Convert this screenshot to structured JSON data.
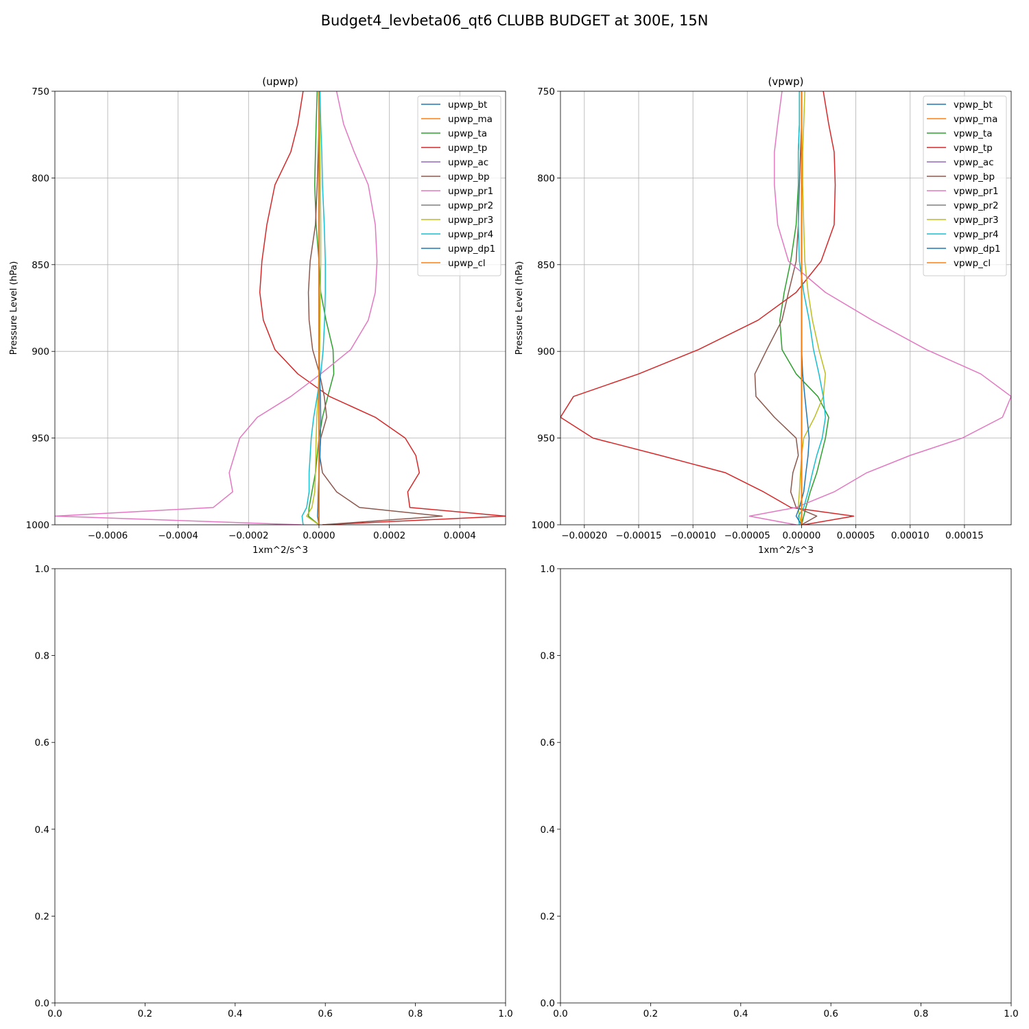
{
  "figure": {
    "suptitle": "Budget4_levbeta06_qt6 CLUBB BUDGET at 300E, 15N"
  },
  "chart_data": [
    {
      "type": "line",
      "title": "(upwp)",
      "xlabel": "1xm^2/s^3",
      "ylabel": "Pressure Level (hPa)",
      "xlim": [
        -0.00075,
        0.00053
      ],
      "ylim": [
        1000,
        750
      ],
      "y_inverted": true,
      "grid": true,
      "legend": "upper right",
      "xticks": [
        -0.0006,
        -0.0004,
        -0.0002,
        0.0,
        0.0002,
        0.0004
      ],
      "xtick_labels": [
        "−0.0006",
        "−0.0004",
        "−0.0002",
        "0.0000",
        "0.0002",
        "0.0004"
      ],
      "yticks": [
        750,
        800,
        850,
        900,
        950,
        1000
      ],
      "ytick_labels": [
        "750",
        "800",
        "850",
        "900",
        "950",
        "1000"
      ],
      "levels": [
        750,
        769,
        785,
        804,
        827,
        848,
        866,
        882,
        899,
        913,
        926,
        938,
        950,
        960,
        970,
        981,
        990,
        995,
        1000
      ],
      "series": [
        {
          "name": "upwp_bt",
          "color": "#1f77b4",
          "values": [
            0,
            0,
            0,
            0,
            0,
            0,
            0,
            0,
            0,
            0,
            0,
            0,
            0,
            0,
            0,
            0,
            0,
            0,
            0
          ]
        },
        {
          "name": "upwp_ma",
          "color": "#ff7f0e",
          "values": [
            0,
            0,
            0,
            0,
            0,
            0,
            0,
            0,
            0,
            0,
            0,
            0,
            0,
            0,
            0,
            0,
            0,
            0,
            0
          ]
        },
        {
          "name": "upwp_ta",
          "color": "#2ca02c",
          "values": [
            -5e-06,
            -8e-06,
            -1e-05,
            -1.2e-05,
            -8e-06,
            0,
            5e-06,
            2e-05,
            4e-05,
            4.2e-05,
            2.5e-05,
            1e-05,
            0,
            -5e-06,
            -1e-05,
            -2e-05,
            -2.8e-05,
            -3e-05,
            0
          ]
        },
        {
          "name": "upwp_tp",
          "color": "#d62728",
          "values": [
            -4.5e-05,
            -6e-05,
            -8e-05,
            -0.000125,
            -0.000148,
            -0.000162,
            -0.000168,
            -0.000158,
            -0.000125,
            -6e-05,
            3e-05,
            0.00016,
            0.000245,
            0.000275,
            0.000285,
            0.000252,
            0.000258,
            0.00053,
            1e-05
          ]
        },
        {
          "name": "upwp_ac",
          "color": "#9467bd",
          "values": [
            0,
            0,
            0,
            0,
            0,
            0,
            0,
            0,
            0,
            0,
            0,
            0,
            0,
            0,
            0,
            0,
            0,
            0,
            0
          ]
        },
        {
          "name": "upwp_bp",
          "color": "#8c564b",
          "values": [
            0,
            0,
            -2e-06,
            -5e-06,
            -1e-05,
            -2.5e-05,
            -3e-05,
            -2.8e-05,
            -1.8e-05,
            2e-06,
            1.5e-05,
            2.2e-05,
            5e-06,
            2e-06,
            1e-05,
            5e-05,
            0.000115,
            0.00035,
            1e-05
          ]
        },
        {
          "name": "upwp_pr1",
          "color": "#e377c2",
          "values": [
            5e-05,
            7e-05,
            0.0001,
            0.00014,
            0.00016,
            0.000165,
            0.00016,
            0.00014,
            9e-05,
            5e-06,
            -8e-05,
            -0.000175,
            -0.000225,
            -0.00024,
            -0.000255,
            -0.000245,
            -0.0003,
            -0.00075,
            -5e-05
          ]
        },
        {
          "name": "upwp_pr2",
          "color": "#7f7f7f",
          "values": [
            0,
            0,
            0,
            0,
            0,
            0,
            0,
            0,
            0,
            0,
            0,
            0,
            0,
            0,
            0,
            0,
            0,
            0,
            0
          ]
        },
        {
          "name": "upwp_pr3",
          "color": "#bcbd22",
          "values": [
            0,
            2e-06,
            3e-06,
            4e-06,
            5e-06,
            5e-06,
            4e-06,
            3e-06,
            2e-06,
            0,
            -3e-06,
            -6e-06,
            -8e-06,
            -9e-06,
            -1e-05,
            -1.2e-05,
            -2e-05,
            -3.5e-05,
            0
          ]
        },
        {
          "name": "upwp_pr4",
          "color": "#17becf",
          "values": [
            3e-06,
            5e-06,
            8e-06,
            1e-05,
            1.5e-05,
            1.8e-05,
            1.8e-05,
            1.6e-05,
            1.2e-05,
            5e-06,
            -5e-06,
            -1.5e-05,
            -2.2e-05,
            -2.5e-05,
            -2.8e-05,
            -2.8e-05,
            -3.5e-05,
            -4.8e-05,
            -4.5e-05
          ]
        },
        {
          "name": "upwp_dp1",
          "color": "#1f77b4",
          "values": [
            0,
            0,
            0,
            0,
            0,
            0,
            0,
            0,
            0,
            2e-06,
            4e-06,
            5e-06,
            4e-06,
            3e-06,
            0,
            -2e-06,
            -3e-06,
            -4e-06,
            0
          ]
        },
        {
          "name": "upwp_cl",
          "color": "#ff7f0e",
          "values": [
            0,
            0,
            0,
            0,
            0,
            0,
            0,
            0,
            0,
            0,
            0,
            0,
            0,
            0,
            0,
            0,
            0,
            0,
            0
          ]
        }
      ]
    },
    {
      "type": "line",
      "title": "(vpwp)",
      "xlabel": "1xm^2/s^3",
      "ylabel": "Pressure Level (hPa)",
      "xlim": [
        -0.000222,
        0.000193
      ],
      "ylim": [
        1000,
        750
      ],
      "y_inverted": true,
      "grid": true,
      "legend": "upper right",
      "xticks": [
        -0.0002,
        -0.00015,
        -0.0001,
        -5e-05,
        0.0,
        5e-05,
        0.0001,
        0.00015
      ],
      "xtick_labels": [
        "−0.00020",
        "−0.00015",
        "−0.00010",
        "−0.00005",
        "0.00000",
        "0.00005",
        "0.00010",
        "0.00015"
      ],
      "yticks": [
        750,
        800,
        850,
        900,
        950,
        1000
      ],
      "ytick_labels": [
        "750",
        "800",
        "850",
        "900",
        "950",
        "1000"
      ],
      "levels": [
        750,
        769,
        785,
        804,
        827,
        848,
        866,
        882,
        899,
        913,
        926,
        938,
        950,
        960,
        970,
        981,
        990,
        995,
        1000
      ],
      "series": [
        {
          "name": "vpwp_bt",
          "color": "#1f77b4",
          "values": [
            0,
            0,
            0,
            0,
            0,
            0,
            0,
            0,
            0,
            0,
            0,
            0,
            0,
            0,
            0,
            0,
            0,
            0,
            0
          ]
        },
        {
          "name": "vpwp_ma",
          "color": "#ff7f0e",
          "values": [
            0,
            0,
            0,
            0,
            0,
            0,
            0,
            0,
            0,
            0,
            0,
            0,
            0,
            0,
            0,
            0,
            0,
            0,
            0
          ]
        },
        {
          "name": "vpwp_ta",
          "color": "#2ca02c",
          "values": [
            -2e-06,
            -2e-06,
            -3e-06,
            -3e-06,
            -5e-06,
            -1e-05,
            -1.6e-05,
            -2e-05,
            -1.8e-05,
            -5e-06,
            1.5e-05,
            2.5e-05,
            2.2e-05,
            1.8e-05,
            1.4e-05,
            8e-06,
            4e-06,
            2e-06,
            0
          ]
        },
        {
          "name": "vpwp_tp",
          "color": "#d62728",
          "values": [
            2e-05,
            2.5e-05,
            3e-05,
            3.1e-05,
            3e-05,
            1.8e-05,
            -5e-06,
            -4e-05,
            -9.5e-05,
            -0.00015,
            -0.00021,
            -0.000222,
            -0.000192,
            -0.00013,
            -7e-05,
            -3.5e-05,
            -1e-05,
            4.8e-05,
            2e-06
          ]
        },
        {
          "name": "vpwp_ac",
          "color": "#9467bd",
          "values": [
            0,
            0,
            0,
            0,
            0,
            0,
            0,
            0,
            0,
            0,
            0,
            0,
            0,
            0,
            0,
            0,
            0,
            0,
            0
          ]
        },
        {
          "name": "vpwp_bp",
          "color": "#8c564b",
          "values": [
            0,
            0,
            -1e-06,
            -2e-06,
            -3e-06,
            -5e-06,
            -1.2e-05,
            -1.8e-05,
            -3.2e-05,
            -4.3e-05,
            -4.2e-05,
            -2.5e-05,
            -5e-06,
            -3e-06,
            -8e-06,
            -1e-05,
            -5e-06,
            1.4e-05,
            0
          ]
        },
        {
          "name": "vpwp_pr1",
          "color": "#e377c2",
          "values": [
            -1.8e-05,
            -2.2e-05,
            -2.5e-05,
            -2.5e-05,
            -2.2e-05,
            -1.2e-05,
            2.2e-05,
            6.5e-05,
            0.000115,
            0.000165,
            0.000193,
            0.000185,
            0.000148,
            0.0001,
            6e-05,
            3e-05,
            -5e-06,
            -4.8e-05,
            -5e-06
          ]
        },
        {
          "name": "vpwp_pr2",
          "color": "#7f7f7f",
          "values": [
            0,
            0,
            0,
            0,
            0,
            0,
            0,
            0,
            0,
            0,
            0,
            0,
            0,
            0,
            0,
            0,
            0,
            0,
            0
          ]
        },
        {
          "name": "vpwp_pr3",
          "color": "#bcbd22",
          "values": [
            3e-06,
            2e-06,
            1e-06,
            1e-06,
            2e-06,
            3e-06,
            6e-06,
            1e-05,
            1.6e-05,
            2.2e-05,
            2e-05,
            1.2e-05,
            2e-06,
            0,
            -1e-06,
            -2e-06,
            -3e-06,
            -2e-06,
            0
          ]
        },
        {
          "name": "vpwp_pr4",
          "color": "#17becf",
          "values": [
            -2e-06,
            -2e-06,
            -3e-06,
            -3e-06,
            -3e-06,
            -2e-06,
            2e-06,
            7e-06,
            1.1e-05,
            1.6e-05,
            2e-05,
            2.2e-05,
            1.9e-05,
            1.4e-05,
            1e-05,
            6e-06,
            2e-06,
            -3e-06,
            -2e-06
          ]
        },
        {
          "name": "vpwp_dp1",
          "color": "#1f77b4",
          "values": [
            0,
            0,
            0,
            0,
            0,
            0,
            0,
            0,
            0,
            1e-06,
            3e-06,
            5e-06,
            7e-06,
            6e-06,
            4e-06,
            2e-06,
            -2e-06,
            -5e-06,
            0
          ]
        },
        {
          "name": "vpwp_cl",
          "color": "#ff7f0e",
          "values": [
            0,
            0,
            0,
            0,
            0,
            0,
            0,
            0,
            0,
            0,
            0,
            0,
            0,
            0,
            0,
            0,
            0,
            0,
            0
          ]
        }
      ]
    },
    {
      "type": "line",
      "title": "",
      "xlim": [
        0,
        1
      ],
      "ylim": [
        0,
        1
      ],
      "grid": false,
      "xticks": [
        0,
        0.2,
        0.4,
        0.6,
        0.8,
        1.0
      ],
      "xtick_labels": [
        "0.0",
        "0.2",
        "0.4",
        "0.6",
        "0.8",
        "1.0"
      ],
      "yticks": [
        0,
        0.2,
        0.4,
        0.6,
        0.8,
        1.0
      ],
      "ytick_labels": [
        "0.0",
        "0.2",
        "0.4",
        "0.6",
        "0.8",
        "1.0"
      ],
      "series": []
    },
    {
      "type": "line",
      "title": "",
      "xlim": [
        0,
        1
      ],
      "ylim": [
        0,
        1
      ],
      "grid": false,
      "xticks": [
        0,
        0.2,
        0.4,
        0.6,
        0.8,
        1.0
      ],
      "xtick_labels": [
        "0.0",
        "0.2",
        "0.4",
        "0.6",
        "0.8",
        "1.0"
      ],
      "yticks": [
        0,
        0.2,
        0.4,
        0.6,
        0.8,
        1.0
      ],
      "ytick_labels": [
        "0.0",
        "0.2",
        "0.4",
        "0.6",
        "0.8",
        "1.0"
      ],
      "series": []
    }
  ]
}
